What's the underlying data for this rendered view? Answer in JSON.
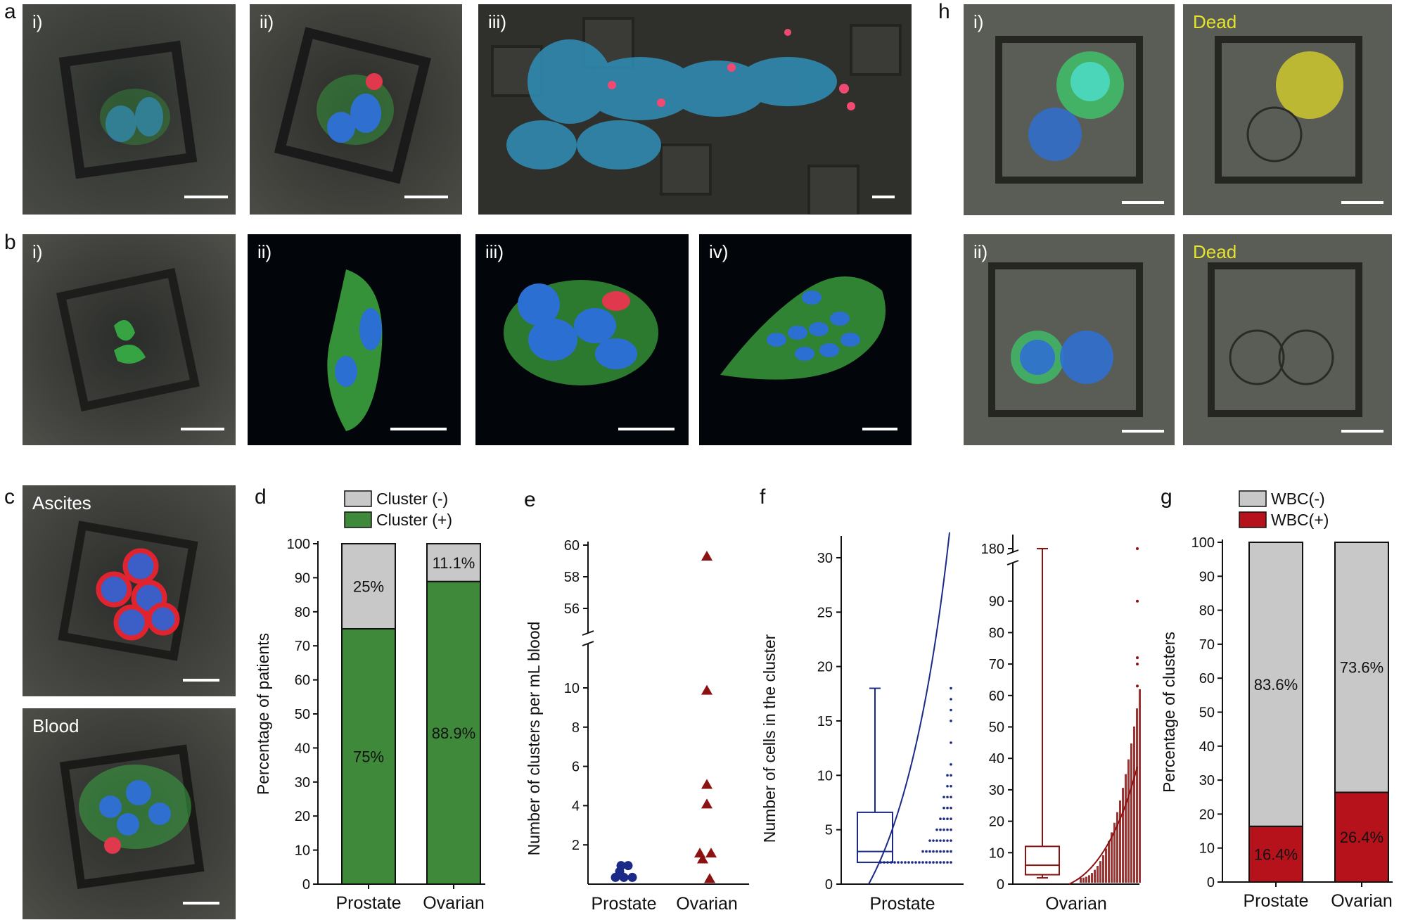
{
  "letters": {
    "a": "a",
    "b": "b",
    "c": "c",
    "d": "d",
    "e": "e",
    "f": "f",
    "g": "g",
    "h": "h"
  },
  "a_labels": [
    "i)",
    "ii)",
    "iii)"
  ],
  "b_labels": [
    "i)",
    "ii)",
    "iii)",
    "iv)"
  ],
  "c_labels": [
    "Ascites",
    "Blood"
  ],
  "h_labels": {
    "r1": "i)",
    "r2": "ii)",
    "dead": "Dead"
  },
  "colors": {
    "green": "#3e8a3a",
    "gray": "#c8c8c8",
    "red": "#b5121b",
    "navy": "#1b2a86",
    "maroon": "#8c1111"
  },
  "chart_data": [
    {
      "id": "d",
      "type": "bar",
      "stacked": true,
      "categories": [
        "Prostate",
        "Ovarian"
      ],
      "series": [
        {
          "name": "Cluster (+)",
          "values": [
            75,
            88.9
          ],
          "labels": [
            "75%",
            "88.9%"
          ]
        },
        {
          "name": "Cluster (-)",
          "values": [
            25,
            11.1
          ],
          "labels": [
            "25%",
            "11.1%"
          ]
        }
      ],
      "ylabel": "Percentage of patients",
      "ylim": [
        0,
        100
      ],
      "yticks": [
        "0",
        "10",
        "20",
        "30",
        "40",
        "50",
        "60",
        "70",
        "80",
        "90",
        "100"
      ],
      "legend": "top"
    },
    {
      "id": "e",
      "type": "scatter",
      "categories": [
        "Prostate",
        "Ovarian"
      ],
      "ylabel": "Number of clusters per mL blood",
      "yticks_low": [
        "2",
        "4",
        "6",
        "8",
        "10"
      ],
      "yticks_high": [
        "56",
        "58",
        "60"
      ],
      "series": [
        {
          "name": "Prostate",
          "marker": "circle",
          "values": [
            0.2,
            0.2,
            0.2,
            0.5,
            0.8,
            0.8
          ]
        },
        {
          "name": "Ovarian",
          "marker": "triangle",
          "values": [
            0.2,
            1.2,
            1.5,
            1.5,
            4.0,
            5.0,
            9.8,
            59.2
          ]
        }
      ]
    },
    {
      "id": "f",
      "type": "box",
      "ylabel": "Number of cells in the cluster",
      "groups": [
        {
          "name": "Prostate",
          "min": 2,
          "q1": 2,
          "median": 3,
          "q3": 6.6,
          "max": 18,
          "yticks": [
            "0",
            "5",
            "10",
            "15",
            "20",
            "25",
            "30"
          ],
          "ylim": [
            0,
            32
          ]
        },
        {
          "name": "Ovarian",
          "min": 2,
          "q1": 3,
          "median": 6,
          "q3": 12,
          "max": 180,
          "yticks": [
            "0",
            "10",
            "20",
            "30",
            "40",
            "50",
            "60",
            "70",
            "80",
            "90"
          ],
          "ytick_break": "180",
          "ylim": [
            0,
            100
          ]
        }
      ]
    },
    {
      "id": "g",
      "type": "bar",
      "stacked": true,
      "categories": [
        "Prostate",
        "Ovarian"
      ],
      "series": [
        {
          "name": "WBC(+)",
          "values": [
            16.4,
            26.4
          ],
          "labels": [
            "16.4%",
            "26.4%"
          ]
        },
        {
          "name": "WBC(-)",
          "values": [
            83.6,
            73.6
          ],
          "labels": [
            "83.6%",
            "73.6%"
          ]
        }
      ],
      "ylabel": "Percentage of clusters",
      "ylim": [
        0,
        100
      ],
      "yticks": [
        "0",
        "10",
        "20",
        "30",
        "40",
        "50",
        "60",
        "70",
        "80",
        "90",
        "100"
      ],
      "legend": "top"
    }
  ]
}
